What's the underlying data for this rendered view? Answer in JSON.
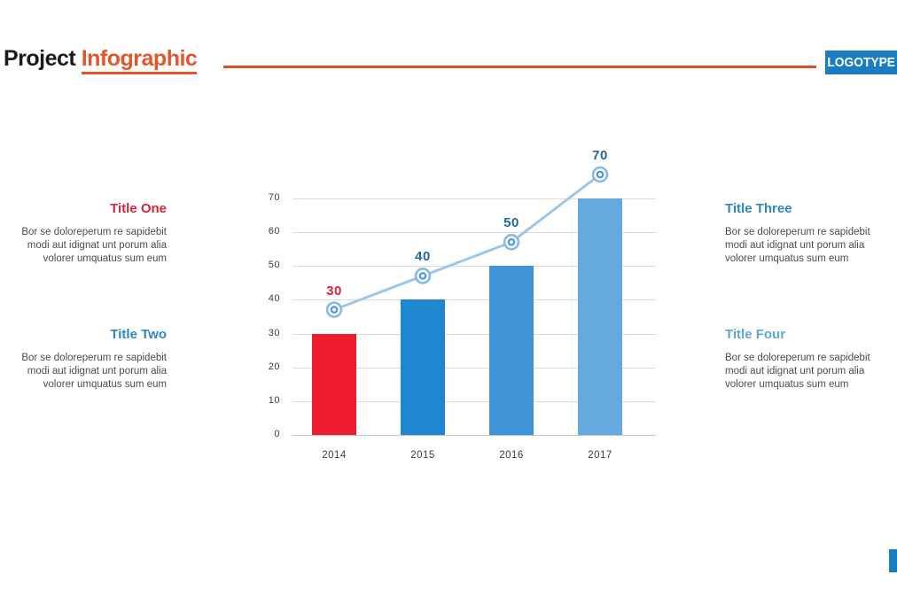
{
  "header": {
    "title_black": "Project",
    "title_accent": "Infographic",
    "logotype": "LOGOTYPE"
  },
  "colors": {
    "accent_orange": "#e2572b",
    "divider_orange": "#d95029",
    "badge_blue": "#1a7dc0",
    "title_red": "#d32638",
    "title_blue": "#2e86c1",
    "title_light_blue": "#5fa8d3",
    "body_text": "#4d4d4d",
    "line_blue": "#9cc7ea",
    "marker_ring": "#85b9e4",
    "marker_dot": "#4a90d2"
  },
  "panels": {
    "left": [
      {
        "title": "Title One",
        "title_color": "#d32638",
        "body": "Bor se doloreperum re sapidebit modi aut idignat unt porum alia volorer umquatus sum eum"
      },
      {
        "title": "Title Two",
        "title_color": "#2e86c1",
        "body": "Bor se doloreperum re sapidebit modi aut idignat unt porum alia volorer umquatus sum eum"
      }
    ],
    "right": [
      {
        "title": "Title Three",
        "title_color": "#2e86c1",
        "body": "Bor se doloreperum re sapidebit modi aut idignat unt porum alia volorer umquatus sum eum"
      },
      {
        "title": "Title Four",
        "title_color": "#5fa8d3",
        "body": "Bor se doloreperum re sapidebit modi aut idignat unt porum alia volorer umquatus sum eum"
      }
    ]
  },
  "chart_data": {
    "type": "bar",
    "subtype": "combo-bar-line",
    "categories": [
      "2014",
      "2015",
      "2016",
      "2017"
    ],
    "series": [
      {
        "name": "bars",
        "type": "bar",
        "values": [
          30,
          40,
          50,
          70
        ],
        "bar_colors": [
          "#ee1c2c",
          "#1f86d2",
          "#3f95d8",
          "#65aadf"
        ]
      },
      {
        "name": "line",
        "type": "line",
        "values": [
          30,
          40,
          50,
          70
        ],
        "label_colors": [
          "#d32638",
          "#20689e",
          "#20689e",
          "#20689e"
        ]
      }
    ],
    "yticks": [
      0,
      10,
      20,
      30,
      40,
      50,
      60,
      70
    ],
    "ylim": [
      0,
      70
    ],
    "xlabel": "",
    "ylabel": "",
    "title": "",
    "grid": true,
    "legend": "none"
  }
}
